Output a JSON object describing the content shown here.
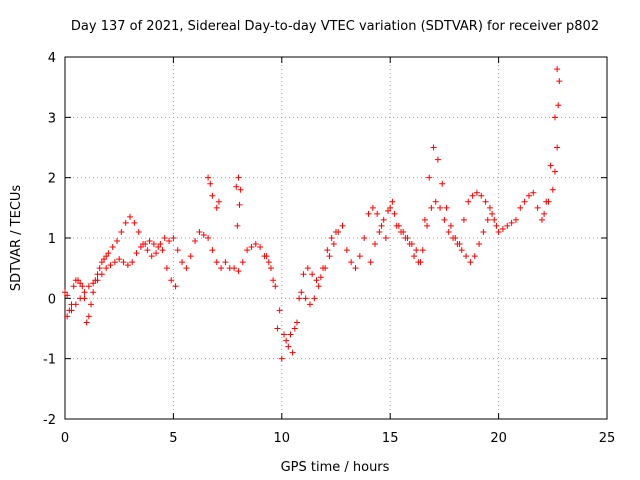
{
  "chart_data": {
    "type": "scatter",
    "title": "Day 137 of 2021, Sidereal Day-to-day VTEC variation (SDTVAR) for receiver p802",
    "xlabel": "GPS time / hours",
    "ylabel": "SDTVAR / TECUs",
    "xlim": [
      0,
      25
    ],
    "ylim": [
      -2,
      4
    ],
    "xticks": [
      "0",
      "5",
      "10",
      "15",
      "20",
      "25"
    ],
    "yticks": [
      "-2",
      "-1",
      "0",
      "1",
      "2",
      "3",
      "4"
    ],
    "grid": true,
    "marker": "+",
    "series_color": "#ff0000",
    "series": [
      {
        "name": "p802",
        "x": [
          0.0,
          0.1,
          0.2,
          0.3,
          0.4,
          0.5,
          0.6,
          0.7,
          0.8,
          0.9,
          1.0,
          1.1,
          1.2,
          1.3,
          1.4,
          1.5,
          1.6,
          1.7,
          1.8,
          1.9,
          2.0,
          2.2,
          2.4,
          2.6,
          2.8,
          3.0,
          3.2,
          3.4,
          3.6,
          3.8,
          4.0,
          4.2,
          4.4,
          4.6,
          4.8,
          5.0,
          5.2,
          5.4,
          5.6,
          5.8,
          6.0,
          6.2,
          6.4,
          6.6,
          6.8,
          7.0,
          7.2,
          7.4,
          7.6,
          7.8,
          8.0,
          8.2,
          8.4,
          8.6,
          8.8,
          9.0,
          9.2,
          9.4,
          9.6,
          9.8,
          10.0,
          10.2,
          10.4,
          10.6,
          10.8,
          11.0,
          11.2,
          11.4,
          11.6,
          11.8,
          12.0,
          12.2,
          12.4,
          12.6,
          12.8,
          13.0,
          13.2,
          13.4,
          13.6,
          13.8,
          14.0,
          14.2,
          14.4,
          14.6,
          14.8,
          15.0,
          15.2,
          15.4,
          15.6,
          15.8,
          16.0,
          16.2,
          16.4,
          16.6,
          16.8,
          17.0,
          17.2,
          17.4,
          17.6,
          17.8,
          18.0,
          18.2,
          18.4,
          18.6,
          18.8,
          19.0,
          19.2,
          19.4,
          19.6,
          19.8,
          20.0,
          20.2,
          20.4,
          20.6,
          20.8,
          21.0,
          21.2,
          21.4,
          21.6,
          21.8,
          22.0,
          22.2,
          22.4,
          22.6,
          22.7,
          0.1,
          0.3,
          0.5,
          0.7,
          0.9,
          1.1,
          1.3,
          1.5,
          1.7,
          1.9,
          2.1,
          2.3,
          2.5,
          2.7,
          2.9,
          3.1,
          3.3,
          3.5,
          3.7,
          3.9,
          4.1,
          4.3,
          4.5,
          4.7,
          4.9,
          5.1,
          9.3,
          9.5,
          9.7,
          9.9,
          10.1,
          10.3,
          10.5,
          10.7,
          10.9,
          11.1,
          11.3,
          11.5,
          11.7,
          11.9,
          12.1,
          12.3,
          12.5,
          14.1,
          14.3,
          14.5,
          14.7,
          14.9,
          15.1,
          15.3,
          15.5,
          15.7,
          15.9,
          16.1,
          16.3,
          16.5,
          16.7,
          16.9,
          17.1,
          17.3,
          17.5,
          17.7,
          17.9,
          18.1,
          18.3,
          18.5,
          18.7,
          18.9,
          19.1,
          19.3,
          19.5,
          19.7,
          19.9,
          6.6,
          6.7,
          6.8,
          7.0,
          7.1,
          7.9,
          8.0,
          8.1,
          8.05,
          7.95,
          22.1,
          22.3,
          22.5,
          22.6,
          22.7,
          22.75,
          22.8
        ],
        "y": [
          0.1,
          0.05,
          -0.2,
          -0.1,
          0.2,
          0.3,
          0.3,
          0.25,
          0.2,
          0.0,
          -0.4,
          -0.3,
          -0.1,
          0.1,
          0.3,
          0.4,
          0.5,
          0.6,
          0.65,
          0.7,
          0.75,
          0.85,
          0.95,
          1.1,
          1.25,
          1.35,
          1.25,
          1.1,
          0.9,
          0.8,
          0.7,
          0.75,
          0.9,
          1.0,
          0.95,
          1.0,
          0.8,
          0.6,
          0.5,
          0.7,
          0.95,
          1.1,
          1.05,
          1.0,
          0.8,
          0.6,
          0.5,
          0.6,
          0.5,
          0.5,
          0.45,
          0.6,
          0.8,
          0.85,
          0.9,
          0.85,
          0.7,
          0.6,
          0.3,
          -0.5,
          -1.0,
          -0.7,
          -0.6,
          -0.5,
          0.0,
          0.4,
          0.5,
          0.4,
          0.3,
          0.35,
          0.5,
          0.7,
          0.9,
          1.1,
          1.2,
          0.8,
          0.6,
          0.5,
          0.7,
          1.0,
          1.4,
          1.5,
          1.4,
          1.2,
          1.0,
          1.5,
          1.4,
          1.2,
          1.1,
          1.0,
          0.9,
          0.8,
          0.6,
          1.3,
          2.0,
          2.5,
          2.3,
          1.9,
          1.5,
          1.2,
          1.0,
          0.9,
          1.3,
          1.6,
          1.7,
          1.75,
          1.7,
          1.6,
          1.5,
          1.3,
          1.1,
          1.15,
          1.2,
          1.25,
          1.3,
          1.5,
          1.6,
          1.7,
          1.75,
          1.5,
          1.3,
          1.6,
          2.2,
          3.0,
          3.8,
          -0.3,
          -0.2,
          -0.1,
          0.0,
          0.1,
          0.2,
          0.25,
          0.3,
          0.4,
          0.5,
          0.55,
          0.6,
          0.65,
          0.6,
          0.55,
          0.6,
          0.75,
          0.85,
          0.9,
          0.95,
          0.9,
          0.85,
          0.8,
          0.5,
          0.3,
          0.2,
          0.7,
          0.5,
          0.2,
          -0.2,
          -0.6,
          -0.8,
          -0.9,
          -0.4,
          0.1,
          0.0,
          -0.1,
          0.0,
          0.2,
          0.5,
          0.8,
          1.0,
          1.1,
          0.6,
          0.9,
          1.1,
          1.3,
          1.45,
          1.6,
          1.2,
          1.1,
          1.0,
          0.9,
          0.7,
          0.6,
          0.8,
          1.2,
          1.5,
          1.6,
          1.5,
          1.3,
          1.1,
          1.0,
          0.9,
          0.8,
          0.7,
          0.6,
          0.7,
          0.9,
          1.1,
          1.3,
          1.4,
          1.2,
          2.0,
          1.9,
          1.7,
          1.5,
          1.6,
          1.85,
          2.0,
          1.8,
          1.55,
          1.2,
          1.4,
          1.6,
          1.8,
          2.1,
          2.5,
          3.2,
          3.6
        ]
      }
    ]
  }
}
